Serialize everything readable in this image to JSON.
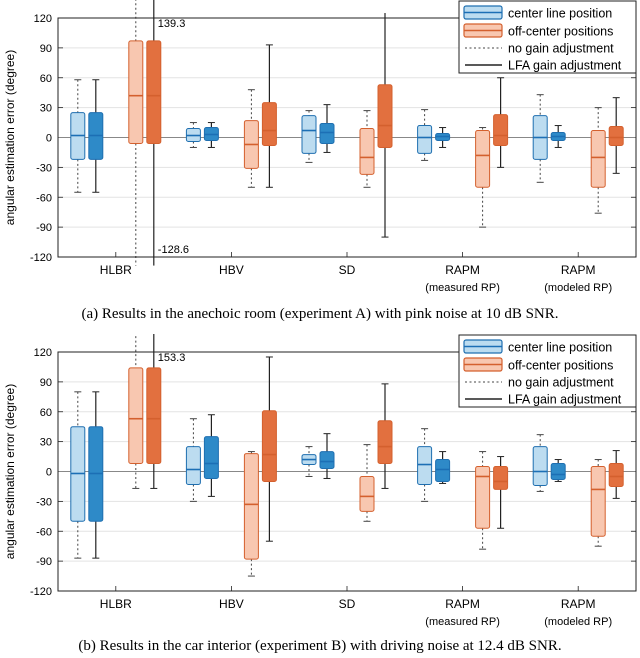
{
  "chart_data": [
    {
      "type": "box",
      "caption": "(a) Results in the anechoic room (experiment A) with pink noise at 10 dB SNR.",
      "ylabel": "angular estimation error (degree)",
      "ylim": [
        -120,
        120
      ],
      "yticks": [
        -120,
        -90,
        -60,
        -30,
        0,
        30,
        60,
        90,
        120
      ],
      "categories": [
        {
          "label": "HLBR",
          "sub": ""
        },
        {
          "label": "HBV",
          "sub": ""
        },
        {
          "label": "SD",
          "sub": ""
        },
        {
          "label": "RAPM",
          "sub": "(measured RP)"
        },
        {
          "label": "RAPM",
          "sub": "(modeled RP)"
        }
      ],
      "legend": [
        "center line position",
        "off-center positions",
        "no gain adjustment",
        "LFA gain adjustment"
      ],
      "colors": {
        "center_light": "#bcdcf0",
        "center_dark": "#2e8ac8",
        "center_edge": "#1f6fb0",
        "center_median": "#1c6fb5",
        "off_light": "#f8c7b0",
        "off_dark": "#e2703f",
        "off_edge": "#d4602e",
        "off_median": "#d4602e"
      },
      "annotations": [
        {
          "text": "139.3",
          "group": 0,
          "series": "off_lfa",
          "at": "top"
        },
        {
          "text": "-128.6",
          "group": 0,
          "series": "off_lfa",
          "at": "bottom"
        }
      ],
      "series": [
        {
          "name": "center_no",
          "boxes": [
            {
              "whislo": -55,
              "q1": -22,
              "med": 2,
              "q3": 25,
              "whishi": 58
            },
            {
              "whislo": -10,
              "q1": -4,
              "med": 2,
              "q3": 9,
              "whishi": 15
            },
            {
              "whislo": -25,
              "q1": -16,
              "med": 7,
              "q3": 22,
              "whishi": 27
            },
            {
              "whislo": -23,
              "q1": -16,
              "med": 0,
              "q3": 12,
              "whishi": 28
            },
            {
              "whislo": -45,
              "q1": -22,
              "med": 0,
              "q3": 22,
              "whishi": 43
            }
          ]
        },
        {
          "name": "center_lfa",
          "boxes": [
            {
              "whislo": -55,
              "q1": -22,
              "med": 2,
              "q3": 25,
              "whishi": 58
            },
            {
              "whislo": -10,
              "q1": -3,
              "med": 3,
              "q3": 10,
              "whishi": 15
            },
            {
              "whislo": -15,
              "q1": -6,
              "med": 5,
              "q3": 14,
              "whishi": 33
            },
            {
              "whislo": -10,
              "q1": -3,
              "med": 1,
              "q3": 4,
              "whishi": 10
            },
            {
              "whislo": -10,
              "q1": -3,
              "med": 1,
              "q3": 5,
              "whishi": 12
            }
          ]
        },
        {
          "name": "off_no",
          "boxes": [
            {
              "whislo": -128.6,
              "q1": -6,
              "med": 42,
              "q3": 97,
              "whishi": 139.3
            },
            {
              "whislo": -50,
              "q1": -31,
              "med": -7,
              "q3": 17,
              "whishi": 48
            },
            {
              "whislo": -50,
              "q1": -37,
              "med": -20,
              "q3": 9,
              "whishi": 27
            },
            {
              "whislo": -90,
              "q1": -50,
              "med": -18,
              "q3": 7,
              "whishi": 10
            },
            {
              "whislo": -76,
              "q1": -50,
              "med": -20,
              "q3": 7,
              "whishi": 30
            }
          ]
        },
        {
          "name": "off_lfa",
          "boxes": [
            {
              "whislo": -128.6,
              "q1": -6,
              "med": 42,
              "q3": 97,
              "whishi": 139.3
            },
            {
              "whislo": -50,
              "q1": -8,
              "med": 7,
              "q3": 35,
              "whishi": 93
            },
            {
              "whislo": -100,
              "q1": -10,
              "med": 12,
              "q3": 53,
              "whishi": 125
            },
            {
              "whislo": -30,
              "q1": -8,
              "med": 2,
              "q3": 23,
              "whishi": 60
            },
            {
              "whislo": -36,
              "q1": -8,
              "med": 0,
              "q3": 11,
              "whishi": 40
            }
          ]
        }
      ]
    },
    {
      "type": "box",
      "caption": "(b) Results in the car interior (experiment B) with driving noise at 12.4 dB SNR.",
      "ylabel": "angular estimation error (degree)",
      "ylim": [
        -120,
        120
      ],
      "yticks": [
        -120,
        -90,
        -60,
        -30,
        0,
        30,
        60,
        90,
        120
      ],
      "categories": [
        {
          "label": "HLBR",
          "sub": ""
        },
        {
          "label": "HBV",
          "sub": ""
        },
        {
          "label": "SD",
          "sub": ""
        },
        {
          "label": "RAPM",
          "sub": "(measured RP)"
        },
        {
          "label": "RAPM",
          "sub": "(modeled RP)"
        }
      ],
      "legend": [
        "center line position",
        "off-center positions",
        "no gain adjustment",
        "LFA gain adjustment"
      ],
      "colors": {
        "center_light": "#bcdcf0",
        "center_dark": "#2e8ac8",
        "center_edge": "#1f6fb0",
        "center_median": "#1c6fb5",
        "off_light": "#f8c7b0",
        "off_dark": "#e2703f",
        "off_edge": "#d4602e",
        "off_median": "#d4602e"
      },
      "annotations": [
        {
          "text": "153.3",
          "group": 0,
          "series": "off_lfa",
          "at": "top"
        }
      ],
      "series": [
        {
          "name": "center_no",
          "boxes": [
            {
              "whislo": -87,
              "q1": -50,
              "med": -2,
              "q3": 45,
              "whishi": 80
            },
            {
              "whislo": -30,
              "q1": -13,
              "med": 2,
              "q3": 25,
              "whishi": 53
            },
            {
              "whislo": -5,
              "q1": 7,
              "med": 12,
              "q3": 17,
              "whishi": 25
            },
            {
              "whislo": -30,
              "q1": -13,
              "med": 7,
              "q3": 25,
              "whishi": 43
            },
            {
              "whislo": -20,
              "q1": -14,
              "med": 0,
              "q3": 25,
              "whishi": 37
            }
          ]
        },
        {
          "name": "center_lfa",
          "boxes": [
            {
              "whislo": -87,
              "q1": -50,
              "med": -2,
              "q3": 45,
              "whishi": 80
            },
            {
              "whislo": -25,
              "q1": -7,
              "med": 8,
              "q3": 35,
              "whishi": 57
            },
            {
              "whislo": -7,
              "q1": 3,
              "med": 10,
              "q3": 20,
              "whishi": 38
            },
            {
              "whislo": -12,
              "q1": -10,
              "med": 2,
              "q3": 12,
              "whishi": 20
            },
            {
              "whislo": -10,
              "q1": -8,
              "med": -3,
              "q3": 8,
              "whishi": 12
            }
          ]
        },
        {
          "name": "off_no",
          "boxes": [
            {
              "whislo": -17,
              "q1": 8,
              "med": 53,
              "q3": 104,
              "whishi": 153.3
            },
            {
              "whislo": -105,
              "q1": -88,
              "med": -33,
              "q3": 18,
              "whishi": 20
            },
            {
              "whislo": -50,
              "q1": -40,
              "med": -25,
              "q3": -5,
              "whishi": 27
            },
            {
              "whislo": -78,
              "q1": -57,
              "med": -5,
              "q3": 5,
              "whishi": 20
            },
            {
              "whislo": -75,
              "q1": -65,
              "med": -18,
              "q3": 5,
              "whishi": 12
            }
          ]
        },
        {
          "name": "off_lfa",
          "boxes": [
            {
              "whislo": -17,
              "q1": 8,
              "med": 53,
              "q3": 104,
              "whishi": 153.3
            },
            {
              "whislo": -70,
              "q1": -10,
              "med": 17,
              "q3": 61,
              "whishi": 115
            },
            {
              "whislo": -17,
              "q1": 8,
              "med": 25,
              "q3": 51,
              "whishi": 88
            },
            {
              "whislo": -57,
              "q1": -18,
              "med": -10,
              "q3": 5,
              "whishi": 15
            },
            {
              "whislo": -27,
              "q1": -15,
              "med": -5,
              "q3": 8,
              "whishi": 21
            }
          ]
        }
      ]
    }
  ]
}
